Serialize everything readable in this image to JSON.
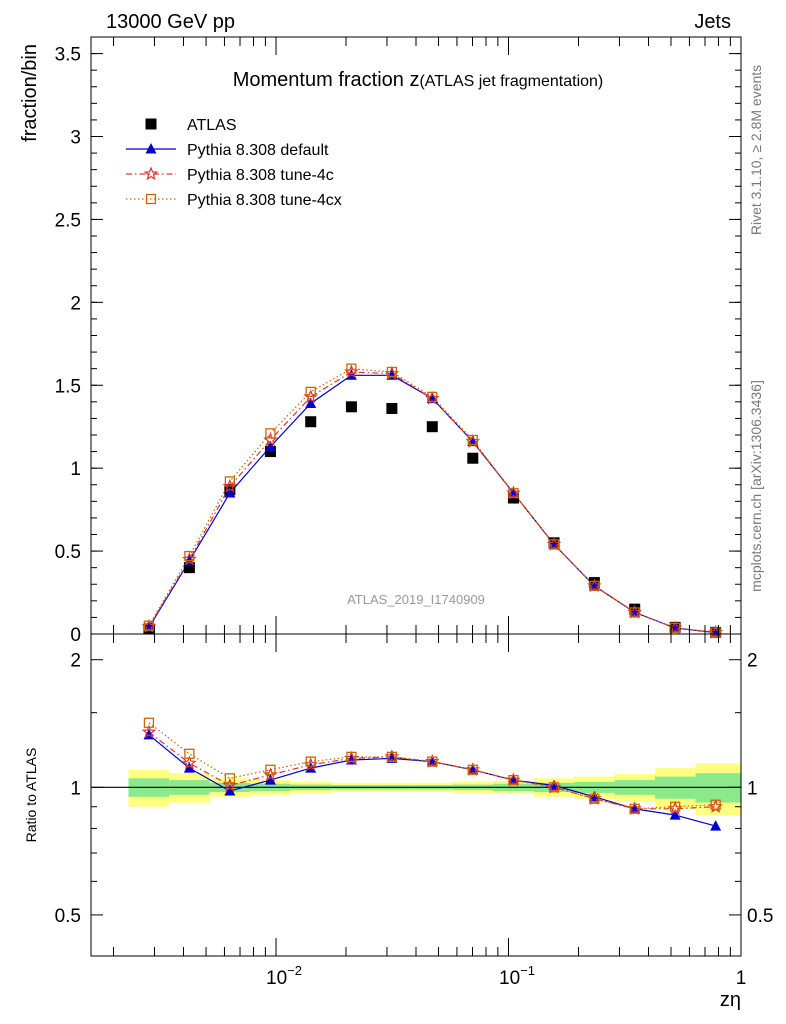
{
  "header": {
    "left": "13000 GeV pp",
    "right": "Jets"
  },
  "side_labels": {
    "rivet": "Rivet 3.1.10, ≥ 2.8M events",
    "mcplots": "mcplots.cern.ch [arXiv:1306.3436]"
  },
  "chart_data": [
    {
      "type": "scatter",
      "title": "Momentum fraction z",
      "title_suffix": "(ATLAS jet fragmentation)",
      "ylabel": "fraction/bin",
      "watermark": "ATLAS_2019_I1740909",
      "xscale": "log",
      "xlim": [
        0.0016,
        1.0
      ],
      "ylim": [
        0,
        3.6
      ],
      "yticks": [
        0,
        0.5,
        1,
        1.5,
        2,
        2.5,
        3,
        3.5
      ],
      "ytick_labels": [
        "0",
        "0.5",
        "1",
        "1.5",
        "2",
        "2.5",
        "3",
        "3.5"
      ],
      "x": [
        0.00284,
        0.00424,
        0.00633,
        0.00946,
        0.0141,
        0.0211,
        0.0315,
        0.047,
        0.0702,
        0.105,
        0.157,
        0.234,
        0.349,
        0.521,
        0.778
      ],
      "legend_position": "top-left",
      "series": [
        {
          "name": "ATLAS",
          "style": "data",
          "color": "#000000",
          "values": [
            0.03,
            0.4,
            0.87,
            1.1,
            1.28,
            1.37,
            1.36,
            1.25,
            1.06,
            0.82,
            0.55,
            0.31,
            0.15,
            0.04,
            0.01
          ]
        },
        {
          "name": "Pythia 8.308 default",
          "style": "solid",
          "marker": "triangle",
          "color": "#0000cc",
          "values": [
            0.04,
            0.44,
            0.85,
            1.13,
            1.39,
            1.56,
            1.56,
            1.42,
            1.16,
            0.85,
            0.54,
            0.29,
            0.13,
            0.036,
            0.008
          ]
        },
        {
          "name": "Pythia 8.308 tune-4c",
          "style": "dashdot",
          "marker": "star",
          "color": "#dd3333",
          "values": [
            0.045,
            0.45,
            0.89,
            1.17,
            1.43,
            1.58,
            1.57,
            1.42,
            1.16,
            0.85,
            0.54,
            0.29,
            0.13,
            0.036,
            0.009
          ]
        },
        {
          "name": "Pythia 8.308 tune-4cx",
          "style": "dotted",
          "marker": "open-square",
          "color": "#cc6600",
          "values": [
            0.05,
            0.47,
            0.92,
            1.21,
            1.46,
            1.6,
            1.58,
            1.43,
            1.17,
            0.85,
            0.54,
            0.29,
            0.13,
            0.037,
            0.009
          ]
        }
      ]
    },
    {
      "type": "scatter",
      "ylabel": "Ratio to ATLAS",
      "xlabel": "zη",
      "xscale": "log",
      "xlim": [
        0.0016,
        1.0
      ],
      "ylim": [
        0.4,
        2.3
      ],
      "yticks": [
        0.5,
        1,
        2
      ],
      "ytick_labels": [
        "0.5",
        "1",
        "2"
      ],
      "xtick_labels": [
        "10",
        "−2",
        "10",
        "−1",
        "1"
      ],
      "x": [
        0.00284,
        0.00424,
        0.00633,
        0.00946,
        0.0141,
        0.0211,
        0.0315,
        0.047,
        0.0702,
        0.105,
        0.157,
        0.234,
        0.349,
        0.521,
        0.778
      ],
      "bin_edges": [
        0.00232,
        0.00347,
        0.00518,
        0.00774,
        0.01156,
        0.01726,
        0.02578,
        0.0385,
        0.0575,
        0.0858,
        0.1282,
        0.1914,
        0.2858,
        0.4268,
        0.6374,
        1.0
      ],
      "band_inner": [
        0.05,
        0.04,
        0.025,
        0.02,
        0.015,
        0.012,
        0.012,
        0.012,
        0.015,
        0.02,
        0.025,
        0.03,
        0.04,
        0.06,
        0.08
      ],
      "band_outer": [
        0.1,
        0.08,
        0.05,
        0.04,
        0.03,
        0.025,
        0.025,
        0.025,
        0.03,
        0.035,
        0.05,
        0.06,
        0.075,
        0.11,
        0.14
      ],
      "series": [
        {
          "name": "Pythia 8.308 default",
          "color": "#0000cc",
          "values": [
            1.33,
            1.11,
            0.98,
            1.04,
            1.11,
            1.16,
            1.17,
            1.15,
            1.1,
            1.04,
            1.01,
            0.95,
            0.89,
            0.86,
            0.81
          ]
        },
        {
          "name": "Pythia 8.308 tune-4c",
          "color": "#dd3333",
          "values": [
            1.35,
            1.14,
            1.01,
            1.07,
            1.13,
            1.17,
            1.18,
            1.15,
            1.1,
            1.04,
            1.0,
            0.94,
            0.89,
            0.89,
            0.9
          ]
        },
        {
          "name": "Pythia 8.308 tune-4cx",
          "color": "#cc6600",
          "values": [
            1.42,
            1.2,
            1.05,
            1.1,
            1.15,
            1.18,
            1.18,
            1.15,
            1.1,
            1.04,
            1.0,
            0.94,
            0.89,
            0.9,
            0.91
          ]
        }
      ]
    }
  ]
}
